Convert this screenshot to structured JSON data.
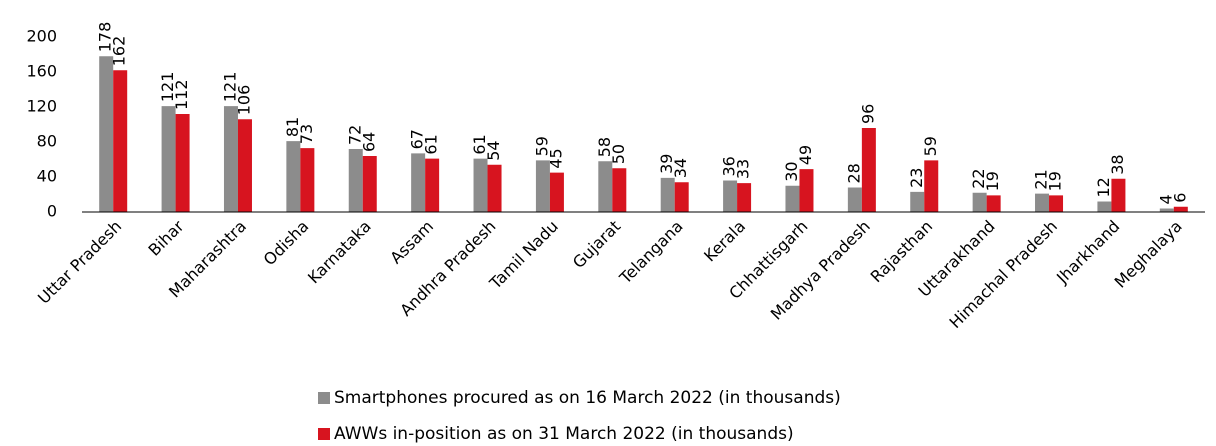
{
  "chart_data": {
    "type": "bar",
    "categories": [
      "Uttar Pradesh",
      "Bihar",
      "Maharashtra",
      "Odisha",
      "Karnataka",
      "Assam",
      "Andhra Pradesh",
      "Tamil Nadu",
      "Gujarat",
      "Telangana",
      "Kerala",
      "Chhattisgarh",
      "Madhya Pradesh",
      "Rajasthan",
      "Uttarakhand",
      "Himachal Pradesh",
      "Jharkhand",
      "Meghalaya"
    ],
    "series": [
      {
        "name": "Smartphones procured as on 16 March 2022 (in thousands)",
        "color": "#8c8c8c",
        "values": [
          178,
          121,
          121,
          81,
          72,
          67,
          61,
          59,
          58,
          39,
          36,
          30,
          28,
          23,
          22,
          21,
          12,
          4
        ]
      },
      {
        "name": "AWWs in-position as on 31 March 2022 (in thousands)",
        "color": "#d7141f",
        "values": [
          162,
          112,
          106,
          73,
          64,
          61,
          54,
          45,
          50,
          34,
          33,
          49,
          96,
          59,
          19,
          19,
          38,
          6
        ]
      }
    ],
    "ylim": [
      0,
      200
    ],
    "yticks": [
      0,
      40,
      80,
      120,
      160,
      200
    ],
    "grid": false
  }
}
